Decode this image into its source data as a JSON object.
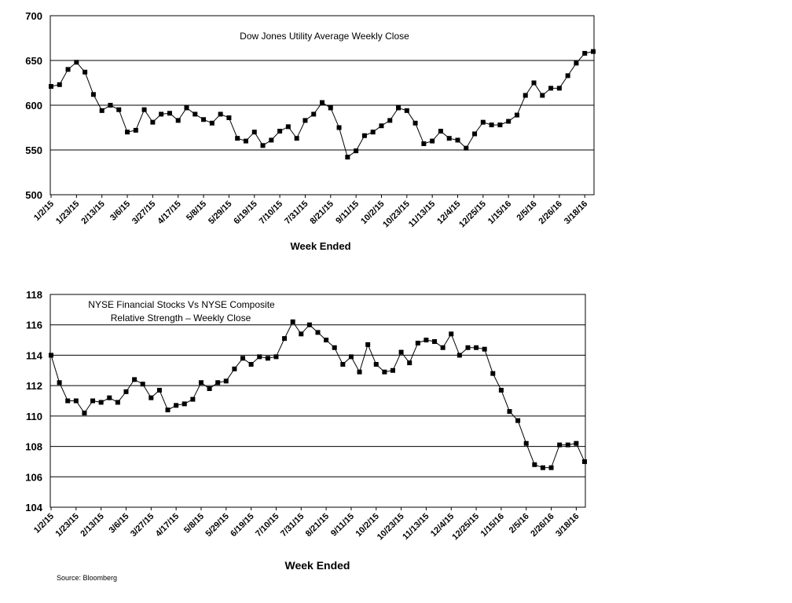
{
  "chart_data": [
    {
      "type": "line",
      "title": "Dow Jones Utility Average Weekly Close",
      "xlabel": "Week Ended",
      "ylabel": "",
      "ylim": [
        500,
        700
      ],
      "yticks": [
        500,
        550,
        600,
        650,
        700
      ],
      "grid": true,
      "xtick_labels": [
        "1/2/15",
        "1/23/15",
        "2/13/15",
        "3/6/15",
        "3/27/15",
        "4/17/15",
        "5/8/15",
        "5/29/15",
        "6/19/15",
        "7/10/15",
        "7/31/15",
        "8/21/15",
        "9/11/15",
        "10/2/15",
        "10/23/15",
        "11/13/15",
        "12/4/15",
        "12/25/15",
        "1/15/16",
        "2/5/16",
        "2/26/16",
        "3/18/16"
      ],
      "series": [
        {
          "values": [
            621,
            623,
            640,
            648,
            637,
            612,
            594,
            600,
            595,
            570,
            572,
            595,
            581,
            590,
            591,
            583,
            597,
            590,
            584,
            580,
            590,
            586,
            563,
            560,
            570,
            555,
            561,
            571,
            576,
            563,
            583,
            590,
            603,
            597,
            575,
            542,
            549,
            566,
            570,
            577,
            583,
            597,
            594,
            580,
            557,
            560,
            571,
            563,
            561,
            552,
            568,
            581,
            578,
            578,
            582,
            589,
            611,
            625,
            611,
            619,
            619,
            633,
            647,
            658,
            660
          ]
        }
      ]
    },
    {
      "type": "line",
      "title": "NYSE Financial Stocks Vs NYSE Composite",
      "subtitle": "Relative Strength – Weekly Close",
      "xlabel": "Week Ended",
      "ylabel": "",
      "ylim": [
        104,
        118
      ],
      "yticks": [
        104,
        106,
        108,
        110,
        112,
        114,
        116,
        118
      ],
      "grid": true,
      "xtick_labels": [
        "1/2/15",
        "1/23/15",
        "2/13/15",
        "3/6/15",
        "3/27/15",
        "4/17/15",
        "5/8/15",
        "5/29/15",
        "6/19/15",
        "7/10/15",
        "7/31/15",
        "8/21/15",
        "9/11/15",
        "10/2/15",
        "10/23/15",
        "11/13/15",
        "12/4/15",
        "12/25/15",
        "1/15/16",
        "2/5/16",
        "2/26/16",
        "3/18/16"
      ],
      "series": [
        {
          "values": [
            114.0,
            112.2,
            111.0,
            111.0,
            110.2,
            111.0,
            110.9,
            111.2,
            110.9,
            111.6,
            112.4,
            112.1,
            111.2,
            111.7,
            110.4,
            110.7,
            110.8,
            111.1,
            112.2,
            111.8,
            112.2,
            112.3,
            113.1,
            113.8,
            113.4,
            113.9,
            113.8,
            113.9,
            115.1,
            116.2,
            115.4,
            116.0,
            115.5,
            115.0,
            114.5,
            113.4,
            113.9,
            112.9,
            114.7,
            113.4,
            112.9,
            113.0,
            114.2,
            113.5,
            114.8,
            115.0,
            114.9,
            114.5,
            115.4,
            114.0,
            114.5,
            114.5,
            114.4,
            112.8,
            111.7,
            110.3,
            109.7,
            108.2,
            106.8,
            106.6,
            106.6,
            108.1,
            108.1,
            108.2,
            107.0
          ]
        }
      ]
    }
  ],
  "footer": {
    "source": "Source: Bloomberg"
  }
}
